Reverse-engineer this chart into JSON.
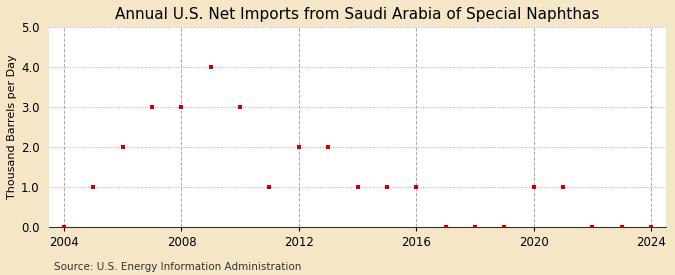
{
  "title": "Annual U.S. Net Imports from Saudi Arabia of Special Naphthas",
  "ylabel": "Thousand Barrels per Day",
  "source": "Source: U.S. Energy Information Administration",
  "background_color": "#f5e6c8",
  "plot_background_color": "#ffffff",
  "xlim": [
    2003.5,
    2024.5
  ],
  "ylim": [
    0.0,
    5.0
  ],
  "yticks": [
    0.0,
    1.0,
    2.0,
    3.0,
    4.0,
    5.0
  ],
  "xticks": [
    2004,
    2008,
    2012,
    2016,
    2020,
    2024
  ],
  "vgrid_positions": [
    2004,
    2008,
    2012,
    2016,
    2020,
    2024
  ],
  "data_years": [
    2004,
    2005,
    2006,
    2007,
    2008,
    2009,
    2010,
    2011,
    2012,
    2013,
    2014,
    2015,
    2016,
    2017,
    2018,
    2019,
    2020,
    2021,
    2022,
    2023,
    2024
  ],
  "data_values": [
    0.0,
    1.0,
    2.0,
    3.0,
    3.0,
    4.0,
    3.0,
    1.0,
    2.0,
    2.0,
    1.0,
    1.0,
    1.0,
    0.0,
    0.0,
    0.0,
    1.0,
    1.0,
    0.0,
    0.0,
    0.0
  ],
  "marker_color": "#cc0000",
  "marker_style": "s",
  "marker_size": 3,
  "title_fontsize": 11,
  "label_fontsize": 8,
  "tick_fontsize": 8.5,
  "source_fontsize": 7.5
}
